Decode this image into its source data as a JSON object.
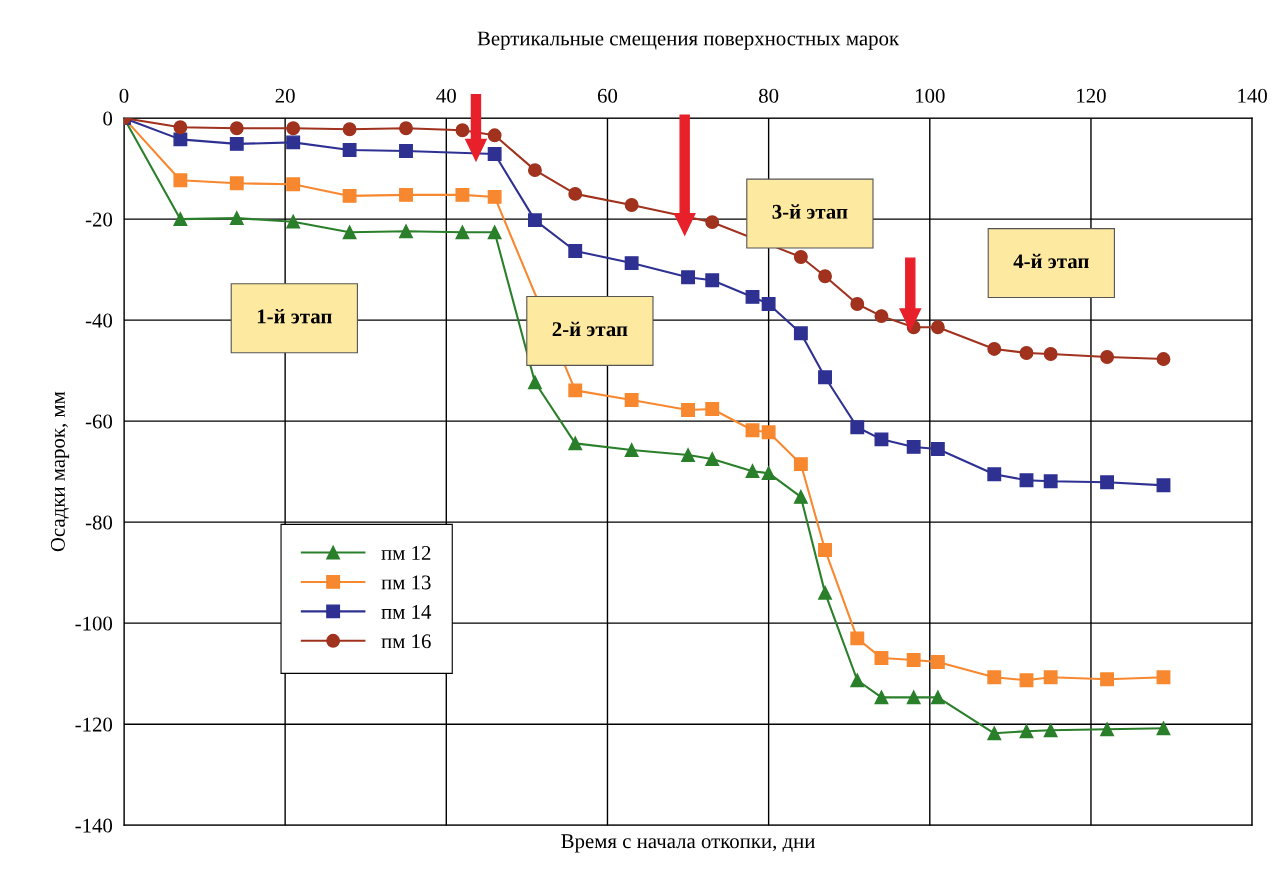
{
  "chart_data": {
    "type": "line",
    "title": "Вертикальные смещения поверхностных марок",
    "xlabel": "Время с начала откопки, дни",
    "ylabel": "Осадки марок, мм",
    "xlim": [
      0,
      140
    ],
    "xticks": [
      0,
      20,
      40,
      60,
      80,
      100,
      120,
      140
    ],
    "ylim": [
      -140,
      0
    ],
    "yticks": [
      -140,
      -120,
      -100,
      -80,
      -60,
      -40,
      -20,
      0
    ],
    "grid": true,
    "legend": "bottom left",
    "series": [
      {
        "name": "пм 12",
        "color": "#2a7f2a",
        "marker": "triangle",
        "x": [
          0,
          7,
          14,
          21,
          28,
          35,
          42,
          46,
          51,
          56,
          63,
          70,
          73,
          78,
          80,
          84,
          87,
          91,
          94,
          98,
          101,
          108,
          112,
          115,
          122,
          129
        ],
        "values": [
          0,
          -20,
          -19.8,
          -20.5,
          -22.6,
          -22.4,
          -22.6,
          -22.6,
          -52.3,
          -64.4,
          -65.7,
          -66.7,
          -67.5,
          -69.9,
          -70.3,
          -75,
          -94,
          -111.3,
          -114.7,
          -114.7,
          -114.7,
          -121.8,
          -121.4,
          -121.2,
          -121,
          -120.8
        ]
      },
      {
        "name": "пм 13",
        "color": "#f7882f",
        "marker": "square",
        "x": [
          0,
          7,
          14,
          21,
          28,
          35,
          42,
          46,
          56,
          63,
          70,
          73,
          78,
          80,
          84,
          87,
          91,
          94,
          98,
          101,
          108,
          112,
          115,
          122,
          129
        ],
        "values": [
          0,
          -12.3,
          -12.9,
          -13.1,
          -15.4,
          -15.2,
          -15.2,
          -15.6,
          -53.9,
          -55.8,
          -57.8,
          -57.6,
          -61.8,
          -62.2,
          -68.5,
          -85.5,
          -103,
          -106.9,
          -107.3,
          -107.7,
          -110.7,
          -111.3,
          -110.7,
          -111.1,
          -110.7
        ]
      },
      {
        "name": "пм 14",
        "color": "#2e3192",
        "marker": "square",
        "x": [
          0,
          7,
          14,
          21,
          28,
          35,
          46,
          51,
          56,
          63,
          70,
          73,
          78,
          80,
          84,
          87,
          91,
          94,
          98,
          101,
          108,
          112,
          115,
          122,
          129
        ],
        "values": [
          0,
          -4.2,
          -5.1,
          -4.8,
          -6.3,
          -6.5,
          -7.1,
          -20.2,
          -26.3,
          -28.7,
          -31.5,
          -32.1,
          -35.4,
          -36.8,
          -42.6,
          -51.3,
          -61.2,
          -63.6,
          -65.1,
          -65.5,
          -70.5,
          -71.7,
          -71.9,
          -72.1,
          -72.7
        ]
      },
      {
        "name": "пм 16",
        "color": "#a0321e",
        "marker": "circle",
        "x": [
          0,
          7,
          14,
          21,
          28,
          35,
          42,
          46,
          51,
          56,
          63,
          73,
          84,
          87,
          91,
          94,
          98,
          101,
          108,
          112,
          115,
          122,
          129
        ],
        "values": [
          0,
          -1.8,
          -2,
          -2,
          -2.2,
          -2,
          -2.4,
          -3.4,
          -10.3,
          -15,
          -17.2,
          -20.6,
          -27.5,
          -31.3,
          -36.8,
          -39.2,
          -41.4,
          -41.4,
          -45.7,
          -46.5,
          -46.7,
          -47.3,
          -47.7
        ]
      }
    ],
    "annotations": [
      "1-й этап",
      "2-й этап",
      "3-й этап",
      "4-й этап"
    ]
  }
}
